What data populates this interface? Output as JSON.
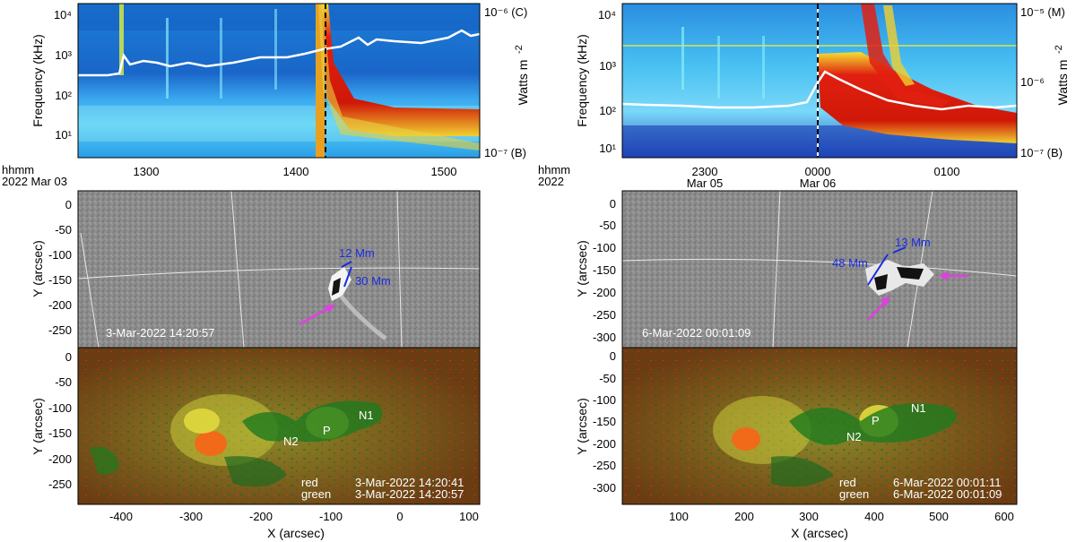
{
  "figure": {
    "left": {
      "spectrogram": {
        "ylabel": "Frequency (kHz)",
        "y_ticks": [
          "10⁴",
          "10³",
          "10²",
          "10¹"
        ],
        "right_label": "Watts m",
        "right_label_exp": "-2",
        "right_top": "10⁻⁶ (C)",
        "right_bottom": "10⁻⁷ (B)",
        "time_header": "hhmm",
        "date_header": "2022 Mar 03",
        "x_ticks": [
          "1300",
          "1400",
          "1500"
        ]
      },
      "euv": {
        "ylabel": "Y (arcsec)",
        "y_ticks": [
          "0",
          "-50",
          "-100",
          "-150",
          "-200",
          "-250"
        ],
        "timestamp": "3-Mar-2022 14:20:57",
        "measure_width": "12 Mm",
        "measure_length": "30 Mm"
      },
      "composite": {
        "ylabel": "Y (arcsec)",
        "y_ticks": [
          "0",
          "-50",
          "-100",
          "-150",
          "-200",
          "-250"
        ],
        "labels": {
          "n1": "N1",
          "n2": "N2",
          "p": "P"
        },
        "legend_red_label": "red",
        "legend_red_time": "3-Mar-2022 14:20:41",
        "legend_green_label": "green",
        "legend_green_time": "3-Mar-2022 14:20:57",
        "xlabel": "X (arcsec)",
        "x_ticks": [
          "-400",
          "-300",
          "-200",
          "-100",
          "0",
          "100"
        ]
      }
    },
    "right": {
      "spectrogram": {
        "ylabel": "Frequency (kHz)",
        "y_ticks": [
          "10⁴",
          "10³",
          "10²",
          "10¹"
        ],
        "right_label": "Watts m",
        "right_label_exp": "-2",
        "right_top": "10⁻⁵ (M)",
        "right_mid": "10⁻⁶",
        "right_bottom": "10⁻⁷ (B)",
        "time_header": "hhmm",
        "date_header": "2022",
        "x_ticks": [
          "2300",
          "0000",
          "0100"
        ],
        "x_subticks": [
          "Mar 05",
          "Mar 06"
        ]
      },
      "euv": {
        "ylabel": "Y (arcsec)",
        "y_ticks": [
          "0",
          "-50",
          "-100",
          "-150",
          "-200",
          "-250",
          "-300"
        ],
        "timestamp": "6-Mar-2022 00:01:09",
        "measure_width": "13 Mm",
        "measure_length": "48 Mm"
      },
      "composite": {
        "ylabel": "Y (arcsec)",
        "y_ticks": [
          "0",
          "-50",
          "-100",
          "-150",
          "-200",
          "-250",
          "-300"
        ],
        "labels": {
          "n1": "N1",
          "n2": "N2",
          "p": "P"
        },
        "legend_red_label": "red",
        "legend_red_time": "6-Mar-2022 00:01:11",
        "legend_green_label": "green",
        "legend_green_time": "6-Mar-2022 00:01:09",
        "xlabel": "X (arcsec)",
        "x_ticks": [
          "100",
          "200",
          "300",
          "400",
          "500",
          "600"
        ]
      }
    }
  },
  "colors": {
    "spectrogram_bg": "#1a8fe0",
    "hot": "#e02010",
    "annotation_blue": "#1a2be0",
    "arrow_magenta": "#e040e0",
    "euv_gray": "#8a8a8a",
    "composite_bg": "#7a3a10"
  }
}
